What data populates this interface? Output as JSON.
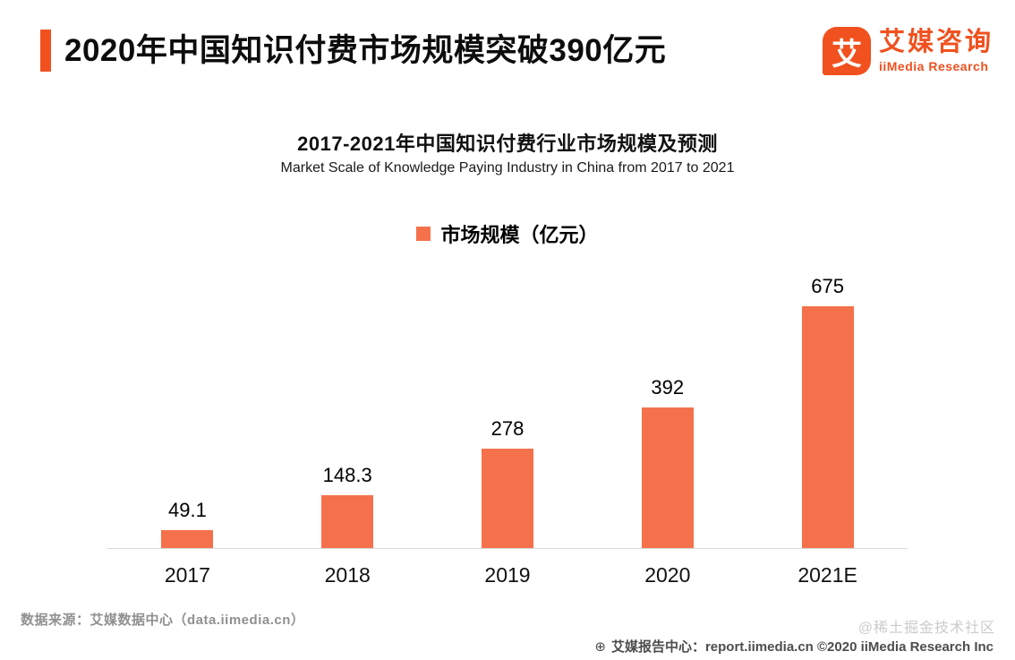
{
  "header": {
    "title": "2020年中国知识付费市场规模突破390亿元",
    "logo": {
      "icon_char": "艾",
      "brand_cn": "艾媒咨询",
      "brand_en": "iiMedia Research"
    }
  },
  "chart_data": {
    "type": "bar",
    "title": "2017-2021年中国知识付费行业市场规模及预测",
    "subtitle": "Market Scale of Knowledge Paying  Industry  in China from 2017 to 2021",
    "legend": "市场规模（亿元）",
    "categories": [
      "2017",
      "2018",
      "2019",
      "2020",
      "2021E"
    ],
    "values": [
      49.1,
      148.3,
      278,
      392,
      675
    ],
    "ylim": [
      0,
      700
    ],
    "bar_color": "#F5714B",
    "grid": false,
    "legend_position": "top-center",
    "xlabel": "",
    "ylabel": "市场规模（亿元）"
  },
  "footer": {
    "source": "数据来源：艾媒数据中心（data.iimedia.cn）",
    "watermark": "@稀土掘金技术社区",
    "globe_icon": "⊕",
    "report_center": "艾媒报告中心：report.iimedia.cn ©2020  iiMedia Research Inc"
  },
  "colors": {
    "brand_orange": "#F0511F",
    "bar_orange": "#F5714B"
  }
}
